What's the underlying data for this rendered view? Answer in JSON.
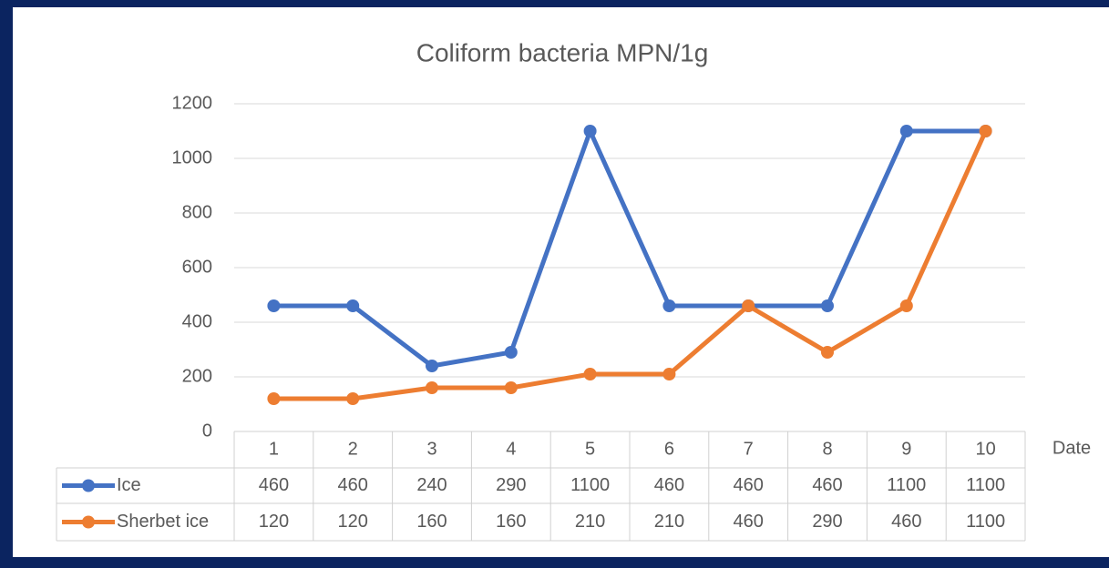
{
  "chart_data": {
    "type": "line",
    "title": "Coliform bacteria MPN/1g",
    "x_label": "Date",
    "categories": [
      "1",
      "2",
      "3",
      "4",
      "5",
      "6",
      "7",
      "8",
      "9",
      "10"
    ],
    "series": [
      {
        "name": "Ice",
        "color": "#4472c4",
        "values": [
          460,
          460,
          240,
          290,
          1100,
          460,
          460,
          460,
          1100,
          1100
        ]
      },
      {
        "name": "Sherbet ice",
        "color": "#ed7d31",
        "values": [
          120,
          120,
          160,
          160,
          210,
          210,
          460,
          290,
          460,
          1100
        ]
      }
    ],
    "ylim": [
      0,
      1200
    ],
    "yticks": [
      0,
      200,
      400,
      600,
      800,
      1000,
      1200
    ],
    "grid": true,
    "data_table": true
  }
}
